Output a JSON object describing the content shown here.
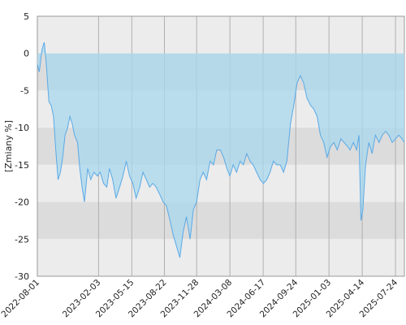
{
  "chart_data": {
    "type": "area",
    "ylabel": "[Zmiany %]",
    "ylim": [
      -30,
      5
    ],
    "yticks": [
      5,
      0,
      -5,
      -10,
      -15,
      -20,
      -25,
      -30
    ],
    "xlim": [
      "2022-08-01",
      "2025-08-20"
    ],
    "xticks": [
      "2022-08-01",
      "2023-02-03",
      "2023-05-15",
      "2023-08-22",
      "2023-11-28",
      "2024-03-08",
      "2024-06-17",
      "2024-09-24",
      "2025-01-03",
      "2025-04-14",
      "2025-07-24"
    ],
    "grid": true,
    "fill_baseline": 0,
    "colors": {
      "line": "#5aa9e6",
      "fill": "#a8d8ee"
    },
    "series": [
      {
        "x": [
          "2022-08-01",
          "2022-08-07",
          "2022-08-15",
          "2022-08-22",
          "2022-08-29",
          "2022-09-05",
          "2022-09-12",
          "2022-09-19",
          "2022-09-26",
          "2022-10-03",
          "2022-10-10",
          "2022-10-17",
          "2022-10-24",
          "2022-11-01",
          "2022-11-08",
          "2022-11-15",
          "2022-11-22",
          "2022-12-01",
          "2022-12-08",
          "2022-12-15",
          "2022-12-22",
          "2023-01-01",
          "2023-01-10",
          "2023-01-20",
          "2023-01-30",
          "2023-02-08",
          "2023-02-18",
          "2023-02-28",
          "2023-03-08",
          "2023-03-18",
          "2023-03-28",
          "2023-04-08",
          "2023-04-18",
          "2023-04-28",
          "2023-05-08",
          "2023-05-18",
          "2023-05-28",
          "2023-06-08",
          "2023-06-18",
          "2023-06-28",
          "2023-07-08",
          "2023-07-18",
          "2023-07-28",
          "2023-08-08",
          "2023-08-18",
          "2023-08-28",
          "2023-09-08",
          "2023-09-18",
          "2023-09-28",
          "2023-10-08",
          "2023-10-18",
          "2023-10-28",
          "2023-11-08",
          "2023-11-18",
          "2023-11-28",
          "2023-12-08",
          "2023-12-18",
          "2023-12-28",
          "2024-01-08",
          "2024-01-18",
          "2024-01-28",
          "2024-02-08",
          "2024-02-18",
          "2024-02-28",
          "2024-03-08",
          "2024-03-18",
          "2024-03-28",
          "2024-04-08",
          "2024-04-18",
          "2024-04-28",
          "2024-05-08",
          "2024-05-18",
          "2024-05-28",
          "2024-06-08",
          "2024-06-18",
          "2024-06-28",
          "2024-07-08",
          "2024-07-18",
          "2024-07-28",
          "2024-08-08",
          "2024-08-18",
          "2024-08-28",
          "2024-09-08",
          "2024-09-18",
          "2024-09-28",
          "2024-10-08",
          "2024-10-18",
          "2024-10-28",
          "2024-11-08",
          "2024-11-18",
          "2024-11-28",
          "2024-12-08",
          "2024-12-18",
          "2024-12-28",
          "2025-01-08",
          "2025-01-18",
          "2025-01-28",
          "2025-02-08",
          "2025-02-18",
          "2025-02-28",
          "2025-03-08",
          "2025-03-18",
          "2025-03-28",
          "2025-04-04",
          "2025-04-10",
          "2025-04-16",
          "2025-04-24",
          "2025-05-04",
          "2025-05-14",
          "2025-05-24",
          "2025-06-04",
          "2025-06-14",
          "2025-06-24",
          "2025-07-04",
          "2025-07-14",
          "2025-07-24",
          "2025-08-03",
          "2025-08-13",
          "2025-08-20"
        ],
        "y": [
          -1.5,
          -2.5,
          0.5,
          1.5,
          -2,
          -6.5,
          -7,
          -8.5,
          -13,
          -17,
          -16,
          -14,
          -11,
          -10,
          -8.5,
          -9.5,
          -11,
          -12,
          -15.5,
          -18,
          -20,
          -15.5,
          -17,
          -16,
          -16.5,
          -16,
          -17.5,
          -18,
          -15.5,
          -17,
          -19.5,
          -18,
          -16.5,
          -14.5,
          -16.5,
          -17.5,
          -19.5,
          -18,
          -16,
          -17,
          -18,
          -17.5,
          -18,
          -19,
          -20,
          -20.5,
          -22.5,
          -24.5,
          -26,
          -27.5,
          -24,
          -22,
          -25,
          -21,
          -20,
          -17,
          -16,
          -17,
          -14.5,
          -15,
          -13,
          -13,
          -14,
          -15.5,
          -16.5,
          -15,
          -16,
          -14.5,
          -15,
          -13.5,
          -14.5,
          -15,
          -16,
          -17,
          -17.5,
          -17,
          -16,
          -14.5,
          -15,
          -15,
          -16,
          -14.5,
          -9.5,
          -7,
          -4,
          -3,
          -4,
          -6,
          -7,
          -7.5,
          -8.5,
          -11,
          -12,
          -14,
          -12.5,
          -12,
          -13,
          -11.5,
          -12,
          -12.5,
          -13,
          -12,
          -13,
          -11,
          -22.5,
          -21,
          -15,
          -12,
          -13.5,
          -11,
          -12,
          -11,
          -10.5,
          -11,
          -12,
          -11.5,
          -11,
          -11.5,
          -12
        ]
      }
    ]
  }
}
